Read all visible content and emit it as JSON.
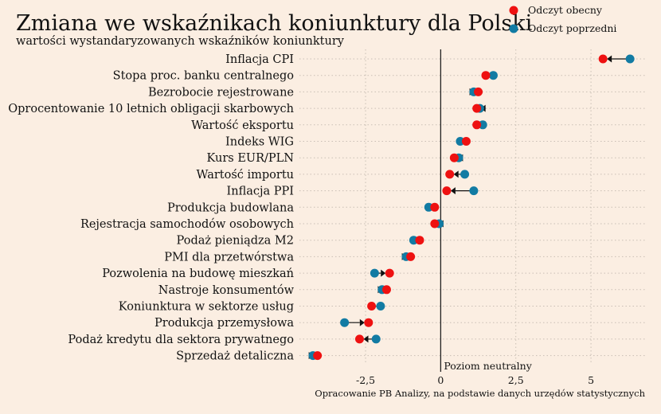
{
  "chart_data": {
    "type": "dumbbell",
    "title": "Zmiana we wskaźnikach koniunktury dla Polski",
    "subtitle": "wartości wystandaryzowanych wskaźników koniunktury",
    "categories": [
      "Inflacja CPI",
      "Stopa proc. banku centralnego",
      "Bezrobocie rejestrowane",
      "Oprocentowanie 10 letnich obligacji skarbowych",
      "Wartość eksportu",
      "Indeks WIG",
      "Kurs EUR/PLN",
      "Wartość importu",
      "Inflacja PPI",
      "Produkcja budowlana",
      "Rejestracja samochodów osobowych",
      "Podaż pieniądza M2",
      "PMI dla przetwórstwa",
      "Pozwolenia na budowę mieszkań",
      "Nastroje konsumentów",
      "Koniunktura w sektorze usług",
      "Produkcja przemysłowa",
      "Podaż kredytu dla sektora prywatnego",
      "Sprzedaż detaliczna"
    ],
    "series": [
      {
        "name": "Odczyt obecny",
        "color": "#ee1111",
        "values": [
          5.4,
          1.5,
          1.25,
          1.2,
          1.2,
          0.85,
          0.45,
          0.3,
          0.2,
          -0.2,
          -0.2,
          -0.7,
          -1.0,
          -1.7,
          -1.8,
          -2.3,
          -2.4,
          -2.7,
          -4.1
        ]
      },
      {
        "name": "Odczyt poprzedni",
        "color": "#127ba3",
        "values": [
          6.3,
          1.75,
          1.1,
          1.3,
          1.4,
          0.65,
          0.6,
          0.8,
          1.1,
          -0.4,
          -0.05,
          -0.9,
          -1.15,
          -2.2,
          -1.95,
          -2.0,
          -3.2,
          -2.15,
          -4.25
        ]
      }
    ],
    "x_ticks": [
      {
        "value": -2.5,
        "label": "-2,5"
      },
      {
        "value": 0,
        "label": "0"
      },
      {
        "value": 2.5,
        "label": "2,5"
      },
      {
        "value": 5,
        "label": "5"
      }
    ],
    "xlim": [
      -4.7,
      6.8
    ],
    "neutral_line_value": 0,
    "neutral_line_label": "Poziom neutralny",
    "source": "Opracowanie PB Analizy, na podstawie danych urzędów statystycznych",
    "legend_position": "top-right",
    "colors": {
      "background": "#fbeee2",
      "arrow": "#111111",
      "grid": "#c9bfb5"
    }
  }
}
